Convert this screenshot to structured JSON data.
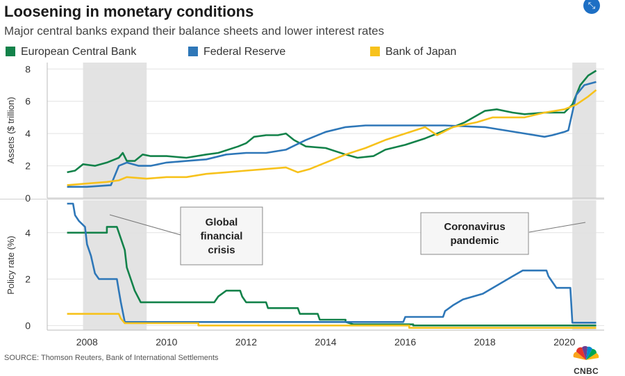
{
  "title": "Loosening in monetary conditions",
  "subtitle": "Major central banks expand their balance sheets and lower interest rates",
  "source": "SOURCE: Thomson Reuters, Bank of International Settlements",
  "logo": "CNBC",
  "colors": {
    "ecb": "#13824a",
    "fed": "#2e77b8",
    "boj": "#f7c21c",
    "shade": "#e3e3e3",
    "grid": "#e2e2e2"
  },
  "icons": {
    "expand": "expand-arrows-icon",
    "logo": "nbc-peacock-icon"
  },
  "chart_data": {
    "type": "line",
    "legend_placement": "top",
    "legend": [
      {
        "key": "ecb",
        "label": "European Central Bank"
      },
      {
        "key": "fed",
        "label": "Federal Reserve"
      },
      {
        "key": "boj",
        "label": "Bank of Japan"
      }
    ],
    "x_ticks": [
      2008,
      2010,
      2012,
      2014,
      2016,
      2018,
      2020
    ],
    "xlim": [
      2007.0,
      2021.0
    ],
    "shaded_periods": [
      [
        2007.9,
        2009.5
      ],
      [
        2020.2,
        2020.8
      ]
    ],
    "annotations": [
      {
        "label_lines": [
          "Global",
          "financial",
          "crisis"
        ]
      },
      {
        "label_lines": [
          "Coronavirus",
          "pandemic"
        ]
      }
    ],
    "panels": [
      {
        "name": "assets",
        "ylabel": "Assets ($ trillion)",
        "ylim": [
          0,
          8.4
        ],
        "y_ticks": [
          0,
          2,
          4,
          6,
          8
        ],
        "grid": true,
        "series": [
          {
            "key": "ecb",
            "name": "European Central Bank",
            "points": [
              [
                2007.5,
                1.6
              ],
              [
                2007.7,
                1.7
              ],
              [
                2007.9,
                2.1
              ],
              [
                2008.2,
                2.0
              ],
              [
                2008.5,
                2.2
              ],
              [
                2008.8,
                2.5
              ],
              [
                2008.9,
                2.8
              ],
              [
                2009.0,
                2.3
              ],
              [
                2009.2,
                2.3
              ],
              [
                2009.4,
                2.7
              ],
              [
                2009.6,
                2.6
              ],
              [
                2010.0,
                2.6
              ],
              [
                2010.5,
                2.5
              ],
              [
                2011.0,
                2.7
              ],
              [
                2011.3,
                2.8
              ],
              [
                2011.8,
                3.2
              ],
              [
                2012.0,
                3.4
              ],
              [
                2012.2,
                3.8
              ],
              [
                2012.5,
                3.9
              ],
              [
                2012.8,
                3.9
              ],
              [
                2013.0,
                4.0
              ],
              [
                2013.2,
                3.6
              ],
              [
                2013.5,
                3.2
              ],
              [
                2014.0,
                3.1
              ],
              [
                2014.5,
                2.7
              ],
              [
                2014.8,
                2.5
              ],
              [
                2015.2,
                2.6
              ],
              [
                2015.5,
                3.0
              ],
              [
                2016.0,
                3.3
              ],
              [
                2016.5,
                3.7
              ],
              [
                2017.0,
                4.2
              ],
              [
                2017.5,
                4.7
              ],
              [
                2018.0,
                5.4
              ],
              [
                2018.3,
                5.5
              ],
              [
                2018.7,
                5.3
              ],
              [
                2019.0,
                5.2
              ],
              [
                2019.5,
                5.3
              ],
              [
                2020.0,
                5.3
              ],
              [
                2020.2,
                5.8
              ],
              [
                2020.4,
                7.0
              ],
              [
                2020.6,
                7.6
              ],
              [
                2020.8,
                7.9
              ]
            ]
          },
          {
            "key": "fed",
            "name": "Federal Reserve",
            "points": [
              [
                2007.5,
                0.7
              ],
              [
                2008.0,
                0.7
              ],
              [
                2008.6,
                0.8
              ],
              [
                2008.8,
                2.0
              ],
              [
                2009.0,
                2.2
              ],
              [
                2009.3,
                2.0
              ],
              [
                2009.6,
                2.0
              ],
              [
                2010.0,
                2.2
              ],
              [
                2010.5,
                2.3
              ],
              [
                2011.0,
                2.4
              ],
              [
                2011.5,
                2.7
              ],
              [
                2012.0,
                2.8
              ],
              [
                2012.5,
                2.8
              ],
              [
                2013.0,
                3.0
              ],
              [
                2013.5,
                3.6
              ],
              [
                2014.0,
                4.1
              ],
              [
                2014.5,
                4.4
              ],
              [
                2015.0,
                4.5
              ],
              [
                2016.0,
                4.5
              ],
              [
                2017.0,
                4.5
              ],
              [
                2018.0,
                4.4
              ],
              [
                2018.5,
                4.2
              ],
              [
                2019.0,
                4.0
              ],
              [
                2019.5,
                3.8
              ],
              [
                2019.7,
                3.9
              ],
              [
                2020.0,
                4.1
              ],
              [
                2020.1,
                4.2
              ],
              [
                2020.3,
                6.4
              ],
              [
                2020.5,
                7.0
              ],
              [
                2020.8,
                7.2
              ]
            ]
          },
          {
            "key": "boj",
            "name": "Bank of Japan",
            "points": [
              [
                2007.5,
                0.8
              ],
              [
                2008.0,
                0.9
              ],
              [
                2008.5,
                1.0
              ],
              [
                2008.8,
                1.1
              ],
              [
                2009.0,
                1.3
              ],
              [
                2009.5,
                1.2
              ],
              [
                2010.0,
                1.3
              ],
              [
                2010.5,
                1.3
              ],
              [
                2011.0,
                1.5
              ],
              [
                2011.5,
                1.6
              ],
              [
                2012.0,
                1.7
              ],
              [
                2012.5,
                1.8
              ],
              [
                2013.0,
                1.9
              ],
              [
                2013.3,
                1.6
              ],
              [
                2013.6,
                1.8
              ],
              [
                2014.0,
                2.2
              ],
              [
                2014.5,
                2.7
              ],
              [
                2015.0,
                3.1
              ],
              [
                2015.5,
                3.6
              ],
              [
                2016.0,
                4.0
              ],
              [
                2016.5,
                4.4
              ],
              [
                2016.8,
                3.9
              ],
              [
                2017.2,
                4.4
              ],
              [
                2017.8,
                4.7
              ],
              [
                2018.2,
                5.0
              ],
              [
                2018.6,
                5.0
              ],
              [
                2019.0,
                5.0
              ],
              [
                2019.5,
                5.3
              ],
              [
                2020.0,
                5.5
              ],
              [
                2020.3,
                5.8
              ],
              [
                2020.6,
                6.3
              ],
              [
                2020.8,
                6.7
              ]
            ]
          }
        ]
      },
      {
        "name": "policy-rates",
        "ylabel": "Policy rate (%)",
        "ylim": [
          -0.2,
          5.4
        ],
        "y_ticks": [
          0,
          2,
          4
        ],
        "grid": true,
        "series": [
          {
            "key": "ecb",
            "name": "European Central Bank",
            "points": [
              [
                2007.5,
                4.0
              ],
              [
                2008.5,
                4.0
              ],
              [
                2008.5,
                4.25
              ],
              [
                2008.75,
                4.25
              ],
              [
                2008.85,
                3.75
              ],
              [
                2008.95,
                3.25
              ],
              [
                2009.0,
                2.5
              ],
              [
                2009.1,
                2.0
              ],
              [
                2009.2,
                1.5
              ],
              [
                2009.35,
                1.0
              ],
              [
                2011.2,
                1.0
              ],
              [
                2011.3,
                1.25
              ],
              [
                2011.5,
                1.5
              ],
              [
                2011.85,
                1.5
              ],
              [
                2011.9,
                1.25
              ],
              [
                2012.0,
                1.0
              ],
              [
                2012.5,
                1.0
              ],
              [
                2012.55,
                0.75
              ],
              [
                2013.3,
                0.75
              ],
              [
                2013.35,
                0.5
              ],
              [
                2013.8,
                0.5
              ],
              [
                2013.85,
                0.25
              ],
              [
                2014.5,
                0.25
              ],
              [
                2014.5,
                0.15
              ],
              [
                2014.7,
                0.05
              ],
              [
                2016.2,
                0.05
              ],
              [
                2016.2,
                0.0
              ],
              [
                2020.8,
                0.0
              ]
            ]
          },
          {
            "key": "fed",
            "name": "Federal Reserve",
            "points": [
              [
                2007.5,
                5.25
              ],
              [
                2007.65,
                5.25
              ],
              [
                2007.7,
                4.75
              ],
              [
                2007.8,
                4.5
              ],
              [
                2007.95,
                4.25
              ],
              [
                2008.0,
                3.5
              ],
              [
                2008.1,
                3.0
              ],
              [
                2008.2,
                2.25
              ],
              [
                2008.3,
                2.0
              ],
              [
                2008.75,
                2.0
              ],
              [
                2008.8,
                1.5
              ],
              [
                2008.85,
                1.0
              ],
              [
                2008.95,
                0.15
              ],
              [
                2015.95,
                0.15
              ],
              [
                2016.0,
                0.37
              ],
              [
                2016.95,
                0.37
              ],
              [
                2017.0,
                0.62
              ],
              [
                2017.2,
                0.87
              ],
              [
                2017.45,
                1.12
              ],
              [
                2017.95,
                1.37
              ],
              [
                2018.2,
                1.62
              ],
              [
                2018.45,
                1.87
              ],
              [
                2018.7,
                2.12
              ],
              [
                2018.95,
                2.37
              ],
              [
                2019.55,
                2.37
              ],
              [
                2019.6,
                2.12
              ],
              [
                2019.7,
                1.87
              ],
              [
                2019.8,
                1.62
              ],
              [
                2020.15,
                1.62
              ],
              [
                2020.2,
                0.12
              ],
              [
                2020.8,
                0.12
              ]
            ]
          },
          {
            "key": "boj",
            "name": "Bank of Japan",
            "points": [
              [
                2007.5,
                0.5
              ],
              [
                2008.8,
                0.5
              ],
              [
                2008.85,
                0.3
              ],
              [
                2008.95,
                0.1
              ],
              [
                2010.8,
                0.1
              ],
              [
                2010.8,
                0.0
              ],
              [
                2016.1,
                0.0
              ],
              [
                2016.1,
                -0.1
              ],
              [
                2020.8,
                -0.1
              ]
            ]
          }
        ]
      }
    ]
  }
}
